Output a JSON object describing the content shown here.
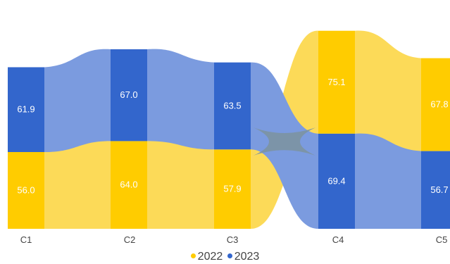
{
  "chart_data": {
    "type": "bar",
    "variant": "stacked ribbon (bump-style) bar chart",
    "categories": [
      "C1",
      "C2",
      "C3",
      "C4",
      "C5"
    ],
    "series": [
      {
        "name": "2022",
        "color": "#FFCC00",
        "ribbon_color": "#FCDA58",
        "values": [
          56.0,
          64.0,
          57.9,
          75.1,
          67.8
        ]
      },
      {
        "name": "2023",
        "color": "#3366CC",
        "ribbon_color": "#7B9BDF",
        "values": [
          61.9,
          67.0,
          63.5,
          69.4,
          56.7
        ]
      }
    ],
    "data_labels": {
      "2022": [
        "56.0",
        "64.0",
        "57.9",
        "75.1",
        "67.8"
      ],
      "2023": [
        "61.9",
        "67.0",
        "63.5",
        "69.4",
        "56.7"
      ]
    },
    "stack_order": "larger value on top",
    "ylim": [
      0,
      150
    ],
    "grid": false,
    "legend_position": "bottom",
    "crossover_color": "#7C93A4"
  }
}
